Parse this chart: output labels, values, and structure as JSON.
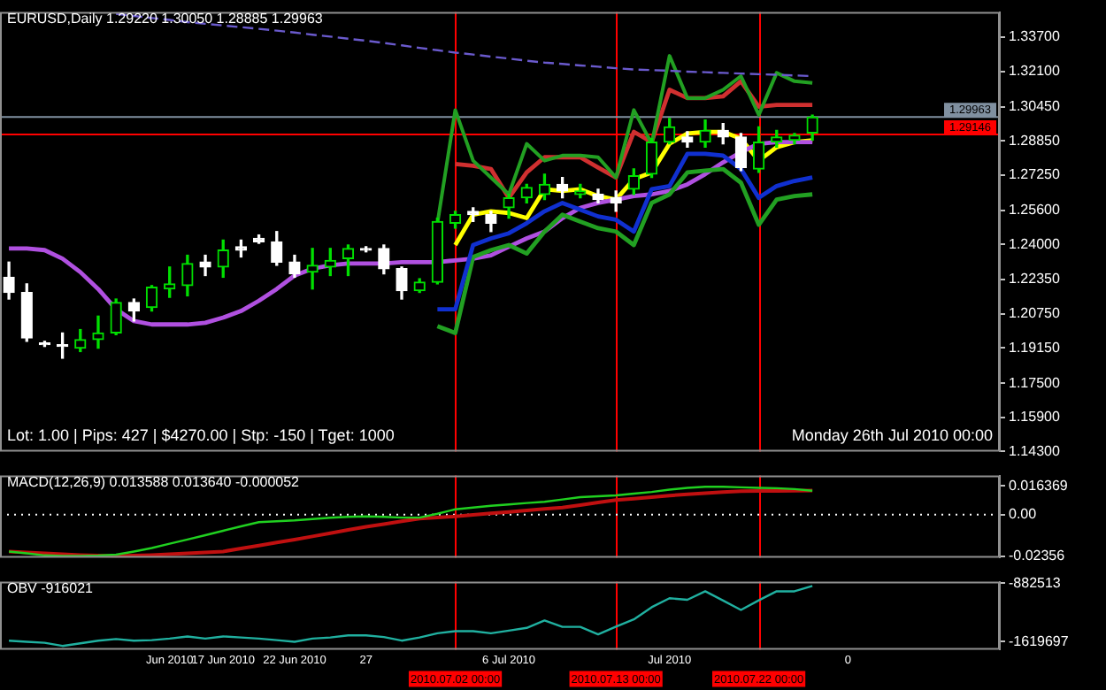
{
  "chart_data": [
    {
      "type": "candlestick",
      "title": "EURUSD,Daily 1.29220 1.30050 1.28885 1.29963",
      "categories": [
        null,
        null,
        null,
        null,
        null,
        null,
        null,
        null,
        null,
        "Jun 2010",
        null,
        null,
        "17 Jun 2010",
        null,
        null,
        null,
        "22 Jun 2010",
        null,
        null,
        null,
        "27",
        null,
        null,
        null,
        null,
        "2010.07.02 00:00",
        null,
        null,
        "6 Jul 2010",
        null,
        null,
        null,
        null,
        null,
        "2010.07.13 00:00",
        null,
        null,
        "Jul 2010",
        null,
        null,
        null,
        null,
        "2010.07.22 00:00",
        null,
        null,
        null,
        null,
        "0",
        null,
        null,
        null,
        null,
        null,
        null,
        null,
        null
      ],
      "ohlc": [
        [
          1.2246,
          1.2317,
          1.2144,
          1.2175
        ],
        [
          1.2175,
          1.2215,
          1.1946,
          1.1962
        ],
        [
          1.1938,
          1.1946,
          1.1922,
          1.193
        ],
        [
          1.193,
          1.1985,
          1.1867,
          1.1922
        ],
        [
          1.1914,
          1.2001,
          1.1898,
          1.1954
        ],
        [
          1.1954,
          1.2064,
          1.1914,
          1.1985
        ],
        [
          1.1985,
          1.2144,
          1.1977,
          1.2128
        ],
        [
          1.2128,
          1.2144,
          1.2041,
          1.2088
        ],
        [
          1.2104,
          1.2207,
          1.2088,
          1.2199
        ],
        [
          1.2191,
          1.2294,
          1.2152,
          1.2215
        ],
        [
          1.2207,
          1.2349,
          1.2159,
          1.231
        ],
        [
          1.2317,
          1.2349,
          1.2254,
          1.2294
        ],
        [
          1.2294,
          1.242,
          1.2246,
          1.2373
        ],
        [
          1.2389,
          1.242,
          1.2341,
          1.2373
        ],
        [
          1.2428,
          1.2444,
          1.2405,
          1.2412
        ],
        [
          1.2412,
          1.246,
          1.2302,
          1.2317
        ],
        [
          1.2317,
          1.2349,
          1.2246,
          1.2262
        ],
        [
          1.227,
          1.2381,
          1.2191,
          1.2302
        ],
        [
          1.2294,
          1.2381,
          1.2254,
          1.2325
        ],
        [
          1.2333,
          1.2397,
          1.2254,
          1.2381
        ],
        [
          1.2381,
          1.2389,
          1.2365,
          1.2373
        ],
        [
          1.2381,
          1.2397,
          1.2262,
          1.2286
        ],
        [
          1.2286,
          1.2294,
          1.2144,
          1.2183
        ],
        [
          1.2183,
          1.2239,
          1.2175,
          1.2223
        ],
        [
          1.2223,
          1.2523,
          1.2215,
          1.2507
        ],
        [
          1.2499,
          1.2555,
          1.2476,
          1.2539
        ],
        [
          1.2555,
          1.2571,
          1.2507,
          1.2539
        ],
        [
          1.2539,
          1.2555,
          1.246,
          1.2499
        ],
        [
          1.2571,
          1.2634,
          1.2523,
          1.2618
        ],
        [
          1.2618,
          1.2681,
          1.2594,
          1.2666
        ],
        [
          1.2634,
          1.2729,
          1.261,
          1.2681
        ],
        [
          1.2681,
          1.2713,
          1.2618,
          1.265
        ],
        [
          1.2634,
          1.2681,
          1.2618,
          1.265
        ],
        [
          1.2634,
          1.2658,
          1.2594,
          1.261
        ],
        [
          1.2618,
          1.265,
          1.2555,
          1.2594
        ],
        [
          1.2658,
          1.2753,
          1.2634,
          1.2721
        ],
        [
          1.2729,
          1.2895,
          1.2713,
          1.2879
        ],
        [
          1.2879,
          1.299,
          1.2871,
          1.295
        ],
        [
          1.2903,
          1.2927,
          1.2855,
          1.2879
        ],
        [
          1.2879,
          1.2982,
          1.2855,
          1.2934
        ],
        [
          1.2934,
          1.2966,
          1.2871,
          1.2903
        ],
        [
          1.2903,
          1.2919,
          1.2745,
          1.276
        ],
        [
          1.2753,
          1.295,
          1.2737,
          1.2879
        ],
        [
          1.2879,
          1.2934,
          1.2855,
          1.2903
        ],
        [
          1.2887,
          1.2919,
          1.2871,
          1.2911
        ],
        [
          1.2922,
          1.3005,
          1.28885,
          1.29963
        ],
        null,
        null,
        null,
        null,
        null,
        null,
        null,
        null,
        null,
        null
      ],
      "colors": [
        "#ffffff",
        "#ffffff",
        "#ffffff",
        "#ffffff",
        "#00e000",
        "#00e000",
        "#00e000",
        "#ffffff",
        "#00e000",
        "#00e000",
        "#00e000",
        "#ffffff",
        "#00e000",
        "#ffffff",
        "#ffffff",
        "#ffffff",
        "#ffffff",
        "#00e000",
        "#00e000",
        "#00e000",
        "#ffffff",
        "#ffffff",
        "#ffffff",
        "#00e000",
        "#00e000",
        "#00e000",
        "#ffffff",
        "#ffffff",
        "#00e000",
        "#00e000",
        "#00e000",
        "#ffffff",
        "#00e000",
        "#ffffff",
        "#ffffff",
        "#00e000",
        "#00e000",
        "#00e000",
        "#ffffff",
        "#00e000",
        "#ffffff",
        "#ffffff",
        "#00e000",
        "#00e000",
        "#00e000",
        "#00e000",
        null,
        null,
        null,
        null,
        null,
        null,
        null,
        null,
        null,
        null
      ],
      "series": [
        {
          "type": "line",
          "color": "#6a5acd",
          "line_style": "dashed",
          "values": [
            null,
            null,
            null,
            null,
            null,
            null,
            1.348,
            1.347,
            1.346,
            1.3451,
            1.3441,
            1.3433,
            1.3425,
            1.3417,
            1.3409,
            1.3401,
            1.3392,
            1.3382,
            1.3373,
            1.3363,
            1.3354,
            1.3343,
            1.3332,
            1.332,
            1.3309,
            1.3298,
            1.3289,
            1.3279,
            1.327,
            1.326,
            1.3251,
            1.3245,
            1.3238,
            1.3232,
            1.3225,
            1.3219,
            1.3216,
            1.3213,
            1.3209,
            1.3206,
            1.3203,
            1.32,
            1.3197,
            1.3194,
            1.3191,
            1.3188,
            null,
            null,
            null,
            null,
            null,
            null,
            null,
            null,
            null,
            null
          ]
        },
        {
          "type": "line",
          "color": "#22a022",
          "values": [
            null,
            null,
            null,
            null,
            null,
            null,
            null,
            null,
            null,
            null,
            null,
            null,
            null,
            null,
            null,
            null,
            null,
            null,
            null,
            null,
            null,
            null,
            null,
            null,
            1.2499,
            1.3029,
            1.2792,
            1.2713,
            1.2634,
            1.2871,
            1.2792,
            1.2816,
            1.2816,
            1.2808,
            1.2713,
            1.3029,
            1.2871,
            1.3283,
            1.3085,
            1.3085,
            1.3124,
            1.3188,
            1.3006,
            1.3203,
            1.3164,
            1.3156,
            null,
            null,
            null,
            null,
            null,
            null,
            null,
            null,
            null,
            null
          ]
        },
        {
          "type": "line",
          "color": "#d03030",
          "values": [
            null,
            null,
            null,
            null,
            null,
            null,
            null,
            null,
            null,
            null,
            null,
            null,
            null,
            null,
            null,
            null,
            null,
            null,
            null,
            null,
            null,
            null,
            null,
            null,
            null,
            1.2776,
            1.2768,
            1.2753,
            1.2618,
            1.2737,
            1.2808,
            1.2808,
            1.2808,
            1.276,
            1.2713,
            1.2927,
            1.2879,
            1.3124,
            1.3085,
            1.3085,
            1.3093,
            1.3164,
            1.3045,
            1.3053,
            1.3053,
            1.3053,
            null,
            null,
            null,
            null,
            null,
            null,
            null,
            null,
            null,
            null
          ]
        },
        {
          "type": "line",
          "color": "#1030d0",
          "values": [
            null,
            null,
            null,
            null,
            null,
            null,
            null,
            null,
            null,
            null,
            null,
            null,
            null,
            null,
            null,
            null,
            null,
            null,
            null,
            null,
            null,
            null,
            null,
            null,
            1.2096,
            1.2096,
            1.2397,
            1.2428,
            1.2452,
            1.2499,
            1.2555,
            1.2594,
            1.2563,
            1.2531,
            1.2515,
            1.246,
            1.2658,
            1.2673,
            1.2824,
            1.2824,
            1.2816,
            1.2753,
            1.2618,
            1.2673,
            1.2697,
            1.2713,
            null,
            null,
            null,
            null,
            null,
            null,
            null,
            null,
            null,
            null
          ]
        },
        {
          "type": "line",
          "color": "#22a022",
          "values": [
            null,
            null,
            null,
            null,
            null,
            null,
            null,
            null,
            null,
            null,
            null,
            null,
            null,
            null,
            null,
            null,
            null,
            null,
            null,
            null,
            null,
            null,
            null,
            null,
            1.2017,
            1.1985,
            1.2341,
            1.2373,
            1.2397,
            1.2357,
            1.246,
            1.2539,
            1.2507,
            1.2476,
            1.246,
            1.2397,
            1.2594,
            1.2634,
            1.2737,
            1.2745,
            1.2753,
            1.2689,
            1.2492,
            1.261,
            1.2626,
            1.2634,
            null,
            null,
            null,
            null,
            null,
            null,
            null,
            null,
            null,
            null
          ]
        },
        {
          "type": "line",
          "color": "#b050e0",
          "values": [
            1.2381,
            1.2381,
            1.2373,
            1.2333,
            1.227,
            1.2191,
            1.2096,
            1.2041,
            1.2025,
            1.2025,
            1.2025,
            1.2033,
            1.2057,
            1.2088,
            1.2136,
            1.2191,
            1.2254,
            1.2286,
            1.2302,
            1.231,
            1.231,
            1.231,
            1.2317,
            1.2317,
            1.2317,
            1.2325,
            1.2333,
            1.2349,
            1.2389,
            1.2428,
            1.246,
            1.2523,
            1.2571,
            1.2594,
            1.261,
            1.2626,
            1.2634,
            1.265,
            1.2681,
            1.2729,
            1.2784,
            1.2832,
            1.2871,
            1.2879,
            1.2879,
            1.2879,
            null,
            null,
            null,
            null,
            null,
            null,
            null,
            null,
            null,
            null
          ]
        },
        {
          "type": "line",
          "color": "#ffff00",
          "values": [
            null,
            null,
            null,
            null,
            null,
            null,
            null,
            null,
            null,
            null,
            null,
            null,
            null,
            null,
            null,
            null,
            null,
            null,
            null,
            null,
            null,
            null,
            null,
            null,
            null,
            1.2397,
            1.2539,
            1.2555,
            1.2547,
            1.2523,
            1.2658,
            1.265,
            1.2658,
            1.2626,
            1.261,
            1.2705,
            1.2737,
            1.2871,
            1.2919,
            1.2927,
            1.2927,
            1.2895,
            1.2792,
            1.2855,
            1.2879,
            1.2887,
            null,
            null,
            null,
            null,
            null,
            null,
            null,
            null,
            null,
            null
          ]
        }
      ],
      "ylim": [
        1.143,
        1.3488
      ],
      "yticks": [
        {
          "value": 1.337,
          "label": "1.33700"
        },
        {
          "value": 1.321,
          "label": "1.32100"
        },
        {
          "value": 1.3045,
          "label": "1.30450"
        },
        {
          "value": 1.2885,
          "label": "1.28850"
        },
        {
          "value": 1.2725,
          "label": "1.27250"
        },
        {
          "value": 1.256,
          "label": "1.25600"
        },
        {
          "value": 1.24,
          "label": "1.24000"
        },
        {
          "value": 1.2235,
          "label": "1.22350"
        },
        {
          "value": 1.2075,
          "label": "1.20750"
        },
        {
          "value": 1.1915,
          "label": "1.19150"
        },
        {
          "value": 1.175,
          "label": "1.17500"
        },
        {
          "value": 1.159,
          "label": "1.15900"
        },
        {
          "value": 1.143,
          "label": "1.14300"
        }
      ],
      "ref_lines": [
        {
          "axis": "x",
          "value": "2010.07.02 00:00",
          "color": "#ff0000"
        },
        {
          "axis": "x",
          "value": "2010.07.13 00:00",
          "color": "#ff0000"
        },
        {
          "axis": "x",
          "value": "2010.07.22 00:00",
          "color": "#ff0000"
        },
        {
          "axis": "y",
          "value": 1.29963,
          "label": "1.29963",
          "color": "#8090a0"
        },
        {
          "axis": "y",
          "value": 1.29146,
          "label": "1.29146",
          "color": "#ff0000"
        }
      ],
      "annotations": [
        "Lot: 1.00 | Pips: 427 | $4270.00 | Stp: -150 | Tget: 1000",
        "Monday 26th Jul 2010 00:00"
      ],
      "tick_labels": "y"
    },
    {
      "type": "line",
      "title": "MACD(12,26,9) 0.013588 0.013640 -0.000052",
      "categories": [
        null,
        null,
        null,
        null,
        null,
        null,
        null,
        null,
        null,
        "Jun 2010",
        null,
        null,
        "17 Jun 2010",
        null,
        null,
        null,
        "22 Jun 2010",
        null,
        null,
        null,
        "27",
        null,
        null,
        null,
        null,
        "2010.07.02 00:00",
        null,
        null,
        "6 Jul 2010",
        null,
        null,
        null,
        null,
        null,
        "2010.07.13 00:00",
        null,
        null,
        "Jul 2010",
        null,
        null,
        null,
        null,
        "2010.07.22 00:00",
        null,
        null,
        null,
        null,
        "0",
        null,
        null,
        null,
        null,
        null,
        null,
        null,
        null
      ],
      "series": [
        {
          "color": "#20d020",
          "values": [
            -0.021,
            -0.022,
            -0.0232,
            -0.0235,
            -0.0235,
            -0.0233,
            -0.0228,
            -0.021,
            -0.019,
            -0.0166,
            -0.0142,
            -0.0117,
            -0.0092,
            -0.0067,
            -0.0043,
            -0.0038,
            -0.0033,
            -0.0025,
            -0.0018,
            -0.0013,
            -0.001,
            -0.0013,
            -0.0017,
            -0.0017,
            0.0005,
            0.003,
            0.004,
            0.005,
            0.0058,
            0.0066,
            0.0073,
            0.0086,
            0.0099,
            0.0104,
            0.0109,
            0.0119,
            0.0129,
            0.0142,
            0.0152,
            0.0158,
            0.0158,
            0.0155,
            0.0152,
            0.015,
            0.0145,
            0.0136,
            null,
            null,
            null,
            null,
            null,
            null,
            null,
            null,
            null,
            null
          ]
        },
        {
          "color": "#c01010",
          "values": [
            -0.021,
            -0.0215,
            -0.022,
            -0.0225,
            -0.023,
            -0.0233,
            -0.0235,
            -0.0233,
            -0.023,
            -0.0225,
            -0.022,
            -0.0215,
            -0.021,
            -0.0193,
            -0.0176,
            -0.0159,
            -0.0142,
            -0.0124,
            -0.0106,
            -0.0087,
            -0.0069,
            -0.0054,
            -0.0038,
            -0.0023,
            -0.0017,
            -0.001,
            -0.0002,
            0.0007,
            0.0015,
            0.0024,
            0.0032,
            0.004,
            0.0054,
            0.0069,
            0.0083,
            0.0091,
            0.0099,
            0.0108,
            0.0116,
            0.0122,
            0.0128,
            0.0133,
            0.0134,
            0.0135,
            0.0136,
            0.01364,
            null,
            null,
            null,
            null,
            null,
            null,
            null,
            null,
            null,
            null
          ]
        }
      ],
      "ylim": [
        -0.0245,
        0.0222
      ],
      "yticks": [
        0.016369,
        {
          "value": 0,
          "label": "0.00"
        },
        -0.02356
      ],
      "ref_lines": [
        {
          "axis": "x",
          "value": "2010.07.02 00:00",
          "color": "#ff0000"
        },
        {
          "axis": "x",
          "value": "2010.07.13 00:00",
          "color": "#ff0000"
        },
        {
          "axis": "x",
          "value": "2010.07.22 00:00",
          "color": "#ff0000"
        },
        {
          "axis": "y",
          "value": 0,
          "color": "#ffffff",
          "line_style": "dotted"
        }
      ],
      "tick_labels": "y"
    },
    {
      "type": "line",
      "title": "OBV -916021",
      "categories": [
        null,
        null,
        null,
        null,
        null,
        null,
        null,
        null,
        null,
        "Jun 2010",
        null,
        null,
        "17 Jun 2010",
        null,
        null,
        null,
        "22 Jun 2010",
        null,
        null,
        null,
        "27",
        null,
        null,
        null,
        null,
        "2010.07.02 00:00",
        null,
        null,
        "6 Jul 2010",
        null,
        null,
        null,
        null,
        null,
        "2010.07.13 00:00",
        null,
        null,
        "Jul 2010",
        null,
        null,
        null,
        null,
        "2010.07.22 00:00",
        null,
        null,
        null,
        null,
        "0",
        null,
        null,
        null,
        null,
        null,
        null,
        null,
        null
      ],
      "series": [
        {
          "color": "#20b0a0",
          "values": [
            -1606000,
            -1620000,
            -1633000,
            -1673000,
            -1640000,
            -1606000,
            -1586000,
            -1606000,
            -1600000,
            -1580000,
            -1553000,
            -1580000,
            -1553000,
            -1566000,
            -1580000,
            -1600000,
            -1620000,
            -1580000,
            -1566000,
            -1539000,
            -1539000,
            -1560000,
            -1606000,
            -1566000,
            -1513000,
            -1486000,
            -1486000,
            -1513000,
            -1480000,
            -1445000,
            -1352000,
            -1432000,
            -1432000,
            -1526000,
            -1430000,
            -1338000,
            -1184000,
            -1070000,
            -1090000,
            -983000,
            -1100000,
            -1218000,
            -1097000,
            -983000,
            -983000,
            -916021,
            null,
            null,
            null,
            null,
            null,
            null,
            null,
            null,
            null,
            null
          ]
        }
      ],
      "ylim": [
        -1720000,
        -862000
      ],
      "yticks": [
        -882513,
        -1619697
      ],
      "ref_lines": [
        {
          "axis": "x",
          "value": "2010.07.02 00:00",
          "color": "#ff0000"
        },
        {
          "axis": "x",
          "value": "2010.07.13 00:00",
          "color": "#ff0000"
        },
        {
          "axis": "x",
          "value": "2010.07.22 00:00",
          "color": "#ff0000"
        }
      ]
    }
  ]
}
